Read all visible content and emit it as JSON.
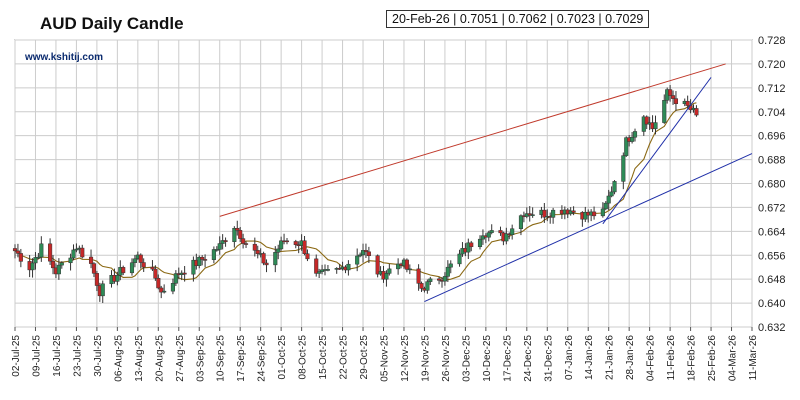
{
  "title": "AUD Daily Candle",
  "website": "www.kshitij.com",
  "info_box": "20-Feb-26 | 0.7051 | 0.7062 | 0.7023 | 0.7029",
  "colors": {
    "up_candle": "#2e8b57",
    "down_candle": "#c62828",
    "moving_average": "#8b6914",
    "upper_trendline": "#c0392b",
    "lower_trendlines": "#1f2fa8",
    "grid": "#cccccc"
  },
  "chart_data": {
    "type": "candlestick",
    "title": "AUD Daily Candle",
    "ylim": [
      0.632,
      0.728
    ],
    "y_ticks": [
      "0.728",
      "0.720",
      "0.712",
      "0.704",
      "0.696",
      "0.688",
      "0.680",
      "0.672",
      "0.664",
      "0.656",
      "0.648",
      "0.640",
      "0.632"
    ],
    "x_range": [
      "2025-07-02",
      "2026-03-11"
    ],
    "x_ticks": [
      "02-Jul-25",
      "09-Jul-25",
      "16-Jul-25",
      "23-Jul-25",
      "30-Jul-25",
      "06-Aug-25",
      "13-Aug-25",
      "20-Aug-25",
      "27-Aug-25",
      "03-Sep-25",
      "10-Sep-25",
      "17-Sep-25",
      "24-Sep-25",
      "01-Oct-25",
      "08-Oct-25",
      "15-Oct-25",
      "22-Oct-25",
      "29-Oct-25",
      "05-Nov-25",
      "12-Nov-25",
      "19-Nov-25",
      "26-Nov-25",
      "03-Dec-25",
      "10-Dec-25",
      "17-Dec-25",
      "24-Dec-25",
      "31-Dec-25",
      "07-Jan-26",
      "14-Jan-26",
      "21-Jan-26",
      "28-Jan-26",
      "04-Feb-26",
      "11-Feb-26",
      "18-Feb-26",
      "25-Feb-26",
      "04-Mar-26",
      "11-Mar-26"
    ],
    "x_tick_dates": [
      "2025-07-02",
      "2025-07-09",
      "2025-07-16",
      "2025-07-23",
      "2025-07-30",
      "2025-08-06",
      "2025-08-13",
      "2025-08-20",
      "2025-08-27",
      "2025-09-03",
      "2025-09-10",
      "2025-09-17",
      "2025-09-24",
      "2025-10-01",
      "2025-10-08",
      "2025-10-15",
      "2025-10-22",
      "2025-10-29",
      "2025-11-05",
      "2025-11-12",
      "2025-11-19",
      "2025-11-26",
      "2025-12-03",
      "2025-12-10",
      "2025-12-17",
      "2025-12-24",
      "2025-12-31",
      "2026-01-07",
      "2026-01-14",
      "2026-01-21",
      "2026-01-28",
      "2026-02-04",
      "2026-02-11",
      "2026-02-18",
      "2026-02-25",
      "2026-03-04",
      "2026-03-11"
    ],
    "grid": true,
    "series_anchor_closes": [
      [
        "2025-07-02",
        0.6575
      ],
      [
        "2025-07-07",
        0.652
      ],
      [
        "2025-07-11",
        0.6585
      ],
      [
        "2025-07-16",
        0.6505
      ],
      [
        "2025-07-23",
        0.659
      ],
      [
        "2025-07-28",
        0.653
      ],
      [
        "2025-07-31",
        0.644
      ],
      [
        "2025-08-06",
        0.6495
      ],
      [
        "2025-08-13",
        0.6555
      ],
      [
        "2025-08-19",
        0.6485
      ],
      [
        "2025-08-21",
        0.6435
      ],
      [
        "2025-08-27",
        0.65
      ],
      [
        "2025-09-03",
        0.654
      ],
      [
        "2025-09-10",
        0.659
      ],
      [
        "2025-09-15",
        0.666
      ],
      [
        "2025-09-19",
        0.66
      ],
      [
        "2025-09-26",
        0.653
      ],
      [
        "2025-10-02",
        0.661
      ],
      [
        "2025-10-08",
        0.66
      ],
      [
        "2025-10-13",
        0.649
      ],
      [
        "2025-10-21",
        0.651
      ],
      [
        "2025-10-29",
        0.658
      ],
      [
        "2025-11-04",
        0.649
      ],
      [
        "2025-11-11",
        0.654
      ],
      [
        "2025-11-18",
        0.645
      ],
      [
        "2025-11-25",
        0.649
      ],
      [
        "2025-12-02",
        0.657
      ],
      [
        "2025-12-09",
        0.664
      ],
      [
        "2025-12-16",
        0.662
      ],
      [
        "2025-12-23",
        0.6705
      ],
      [
        "2025-12-30",
        0.67
      ],
      [
        "2026-01-06",
        0.6715
      ],
      [
        "2026-01-13",
        0.6695
      ],
      [
        "2026-01-19",
        0.67
      ],
      [
        "2026-01-22",
        0.678
      ],
      [
        "2026-01-27",
        0.694
      ],
      [
        "2026-02-02",
        0.703
      ],
      [
        "2026-02-05",
        0.6985
      ],
      [
        "2026-02-10",
        0.71
      ],
      [
        "2026-02-13",
        0.708
      ],
      [
        "2026-02-17",
        0.7055
      ],
      [
        "2026-02-20",
        0.7029
      ]
    ],
    "last_candle": {
      "date": "2026-02-20",
      "open": 0.7051,
      "high": 0.7062,
      "low": 0.7023,
      "close": 0.7029
    },
    "moving_average": {
      "period_note": "",
      "shown": true
    },
    "trendlines": [
      {
        "color": "upper_trendline",
        "from": [
          "2025-09-10",
          0.669
        ],
        "to": [
          "2026-03-02",
          0.72
        ]
      },
      {
        "color": "lower_trendlines",
        "from": [
          "2025-11-19",
          0.6405
        ],
        "to": [
          "2026-03-11",
          0.69
        ]
      },
      {
        "color": "lower_trendlines",
        "from": [
          "2026-01-19",
          0.6665
        ],
        "to": [
          "2026-02-25",
          0.7155
        ]
      }
    ]
  }
}
